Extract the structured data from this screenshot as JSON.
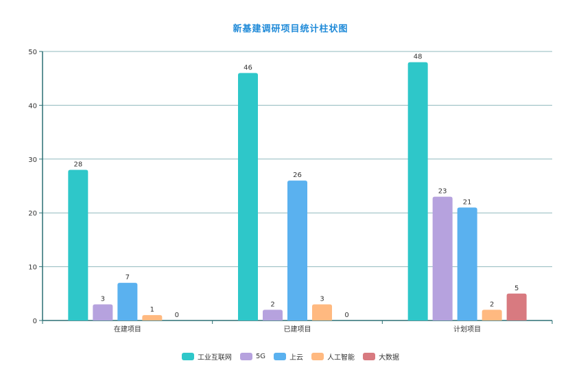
{
  "chart_data": {
    "type": "bar",
    "title": "新基建调研项目统计柱状图",
    "xlabel": "",
    "ylabel": "",
    "categories": [
      "在建项目",
      "已建项目",
      "计划项目"
    ],
    "ylim": [
      0,
      50
    ],
    "yticks": [
      0,
      10,
      20,
      30,
      40,
      50
    ],
    "grid": true,
    "legend_position": "bottom-center",
    "series": [
      {
        "name": "工业互联网",
        "color": "#2ec7c9",
        "values": [
          28,
          46,
          48
        ]
      },
      {
        "name": "5G",
        "color": "#b6a2de",
        "values": [
          3,
          2,
          23
        ]
      },
      {
        "name": "上云",
        "color": "#5ab1ef",
        "values": [
          7,
          26,
          21
        ]
      },
      {
        "name": "人工智能",
        "color": "#ffb980",
        "values": [
          1,
          3,
          2
        ]
      },
      {
        "name": "大数据",
        "color": "#d87a80",
        "values": [
          0,
          0,
          5
        ]
      }
    ],
    "colors": {
      "title": "#1f8ad8",
      "axis": "#2a6f73",
      "grid": "#8fb8bd",
      "label": "#333333"
    }
  }
}
